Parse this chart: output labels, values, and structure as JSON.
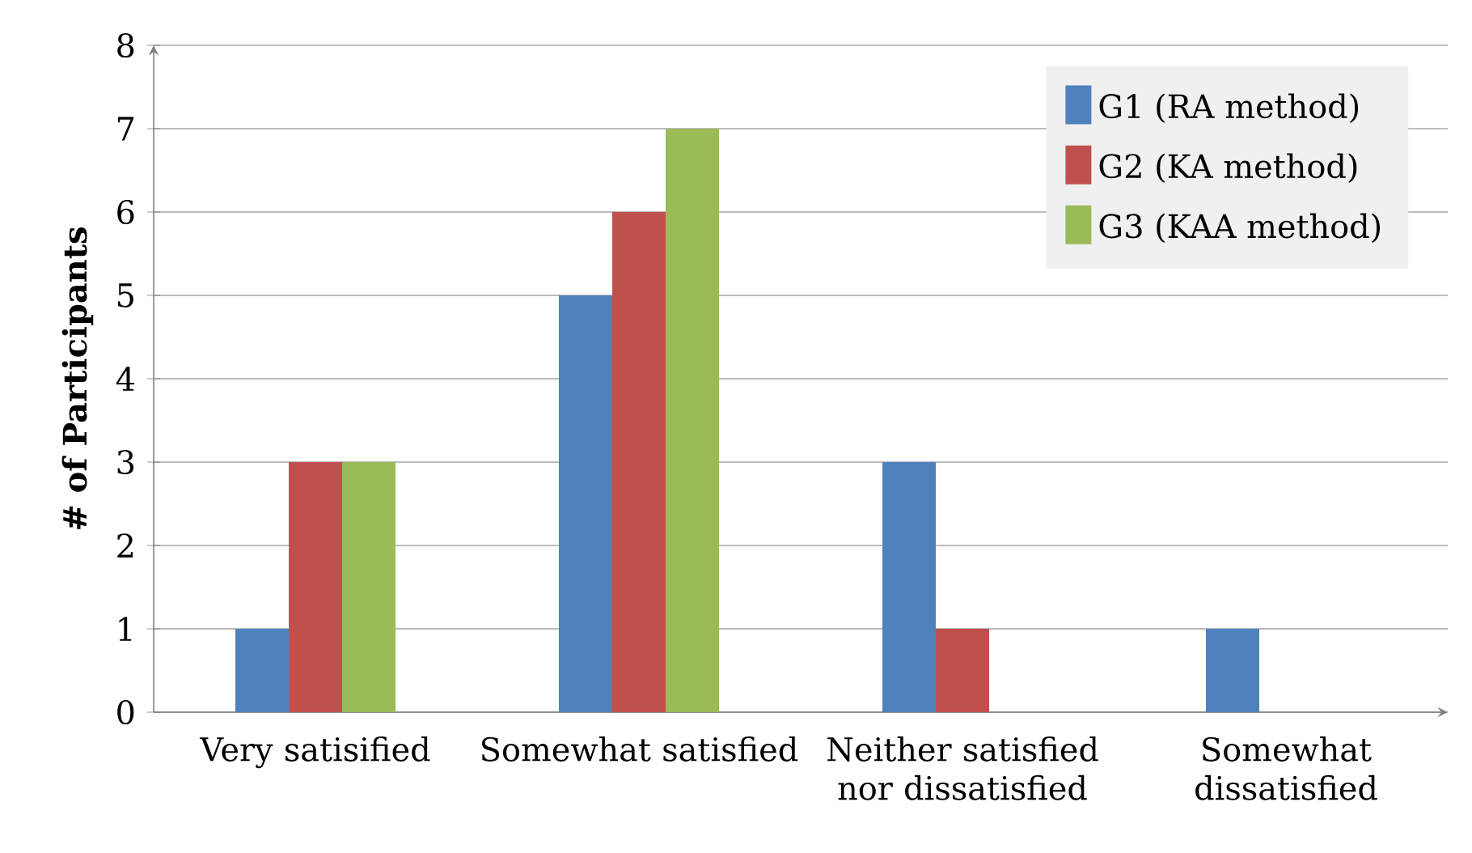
{
  "chart_data": {
    "type": "bar",
    "ylabel": "# of Participants",
    "categories": [
      "Very satisified",
      "Somewhat satisfied",
      "Neither satisfied nor dissatisfied",
      "Somewhat dissatisfied"
    ],
    "series": [
      {
        "name": "G1 (RA method)",
        "color": "#4f81bd",
        "values": [
          1,
          5,
          3,
          1
        ]
      },
      {
        "name": "G2 (KA method)",
        "color": "#c0504d",
        "values": [
          3,
          6,
          1,
          0
        ]
      },
      {
        "name": "G3 (KAA method)",
        "color": "#9bbb59",
        "values": [
          3,
          7,
          0,
          0
        ]
      }
    ],
    "ylim": [
      0,
      8
    ],
    "yticks": [
      0,
      1,
      2,
      3,
      4,
      5,
      6,
      7,
      8
    ],
    "grid": "y",
    "legend": "top right"
  }
}
